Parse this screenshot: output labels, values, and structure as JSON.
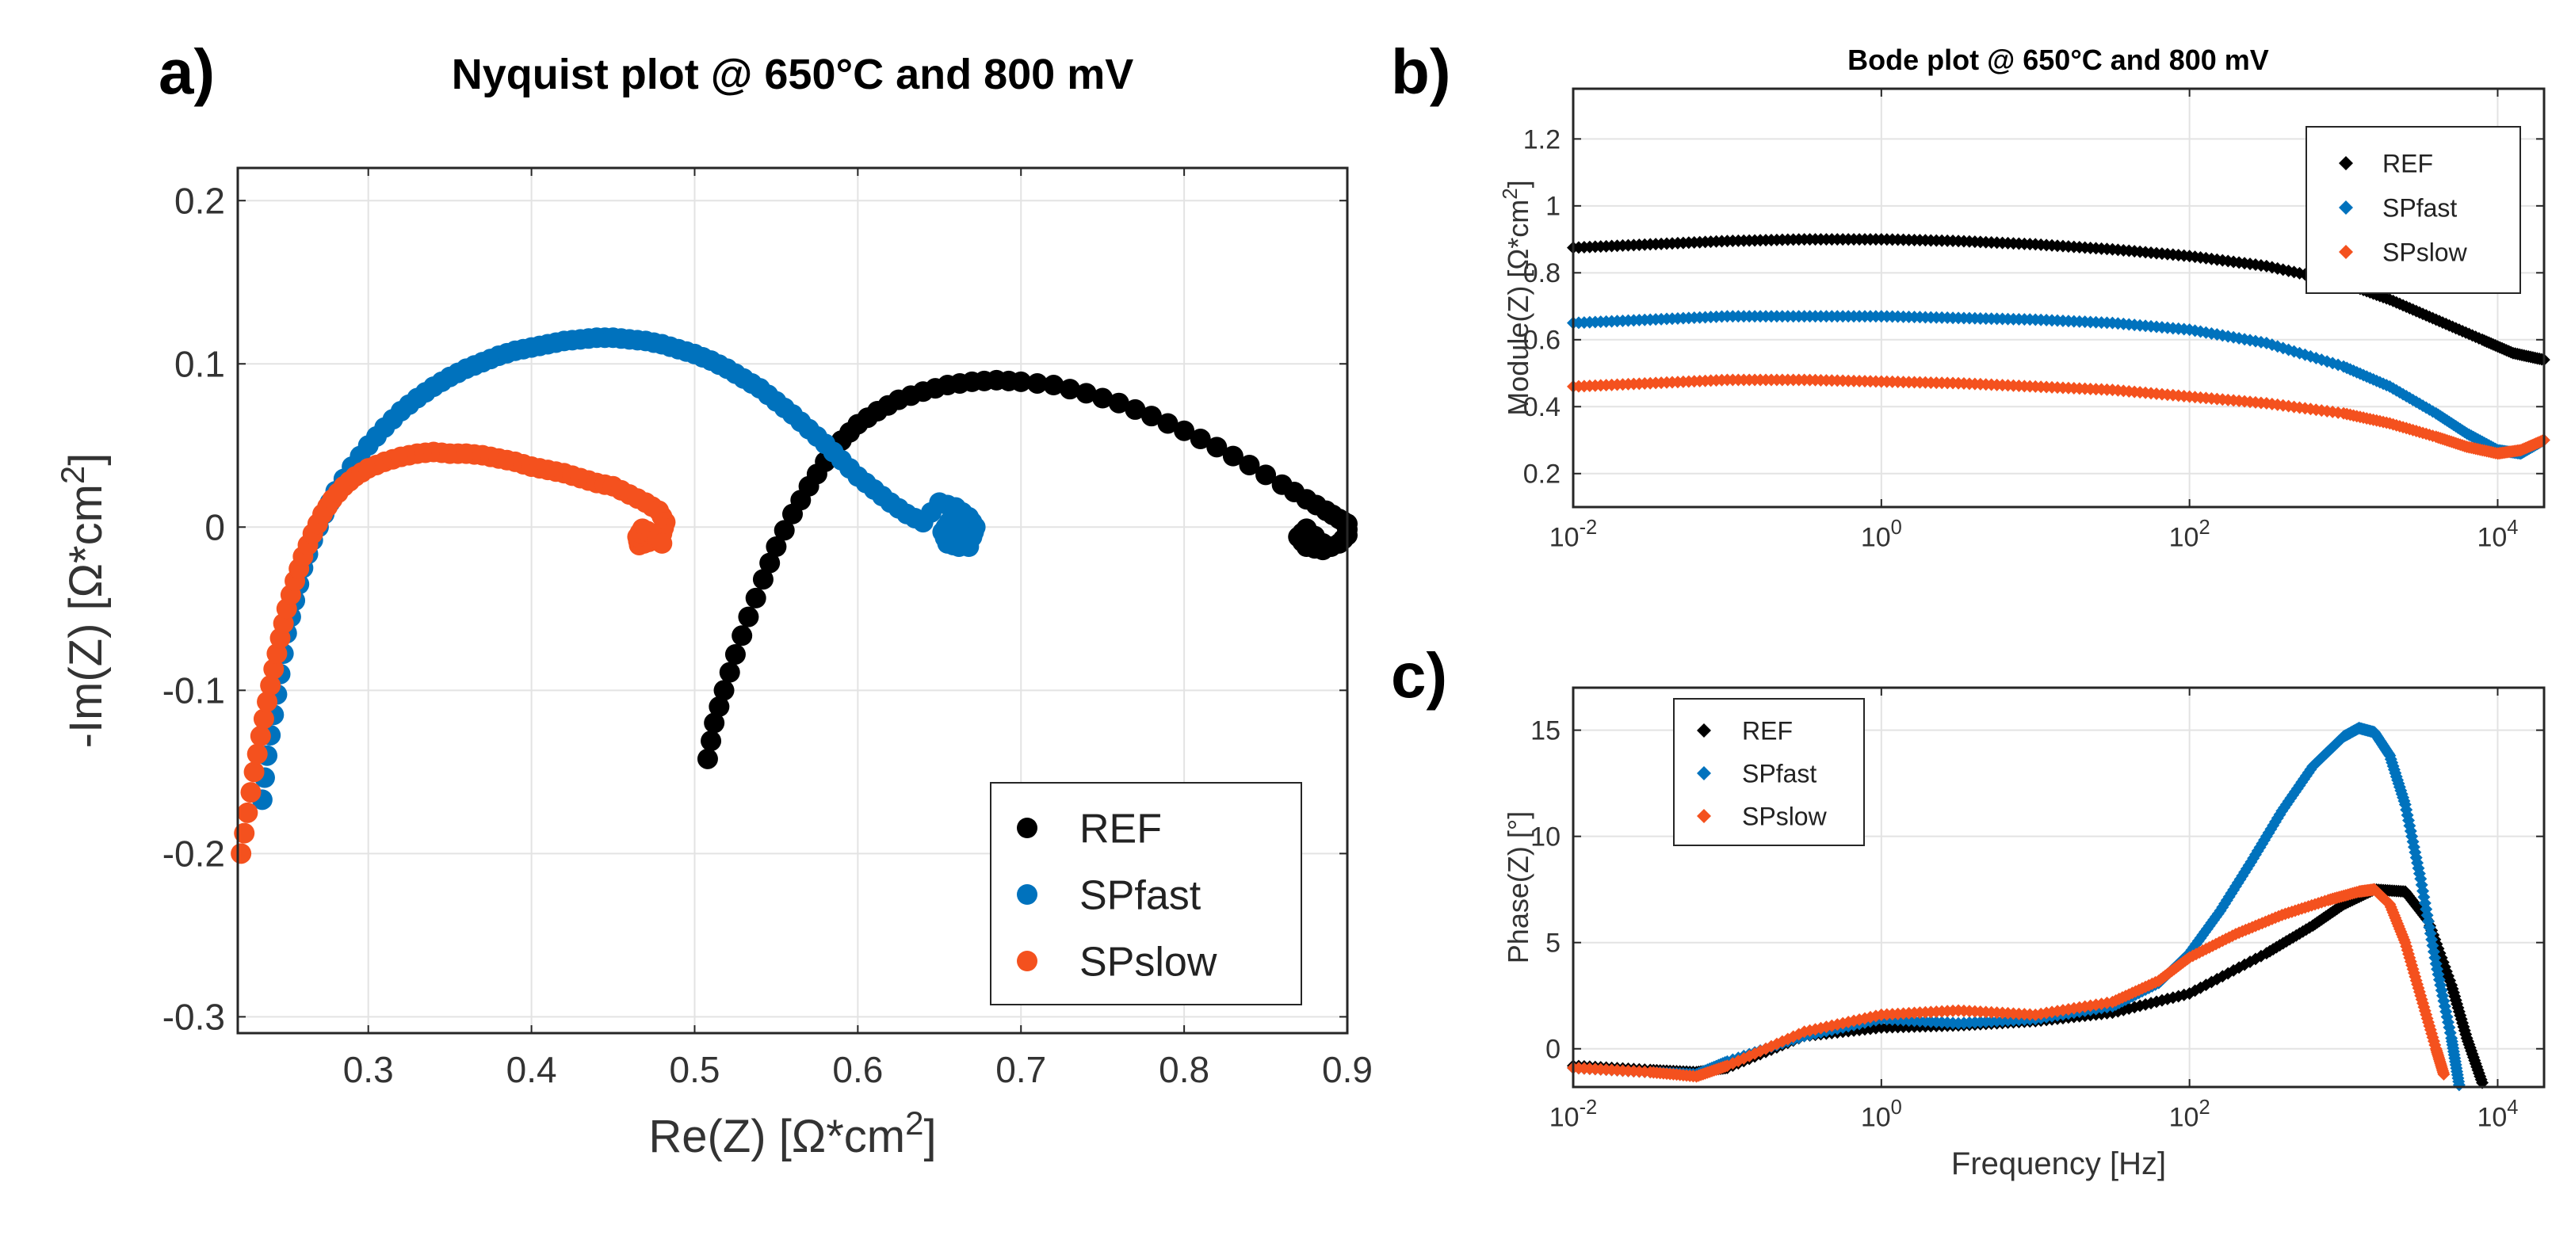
{
  "colors": {
    "REF": "#000000",
    "SPfast": "#0072BD",
    "SPslow": "#F4511E",
    "grid": "#e3e3e3",
    "axis": "#262626"
  },
  "chart_data": [
    {
      "id": "a",
      "panel_label": "a)",
      "type": "scatter",
      "title": "Nyquist plot @ 650°C and 800 mV",
      "xlabel": "Re(Z) [Ω*cm",
      "xlabel_sup": "2",
      "xlabel_end": "]",
      "ylabel": "-Im(Z) [Ω*cm",
      "ylabel_sup": "2",
      "ylabel_end": "]",
      "xlim": [
        0.22,
        0.9
      ],
      "ylim": [
        -0.31,
        0.22
      ],
      "xticks": [
        0.3,
        0.4,
        0.5,
        0.6,
        0.7,
        0.8,
        0.9
      ],
      "xtick_labels": [
        "0.3",
        "0.4",
        "0.5",
        "0.6",
        "0.7",
        "0.8",
        "0.9"
      ],
      "yticks": [
        -0.3,
        -0.2,
        -0.1,
        0,
        0.1,
        0.2
      ],
      "ytick_labels": [
        "-0.3",
        "-0.2",
        "-0.1",
        "0",
        "0.1",
        "0.2"
      ],
      "grid": true,
      "legend_position": "bottom-right",
      "series": [
        {
          "name": "REF",
          "color_key": "REF",
          "x": [
            0.508,
            0.512,
            0.518,
            0.525,
            0.533,
            0.542,
            0.55,
            0.56,
            0.57,
            0.58,
            0.59,
            0.6,
            0.612,
            0.625,
            0.64,
            0.655,
            0.67,
            0.685,
            0.7,
            0.72,
            0.74,
            0.76,
            0.78,
            0.8,
            0.82,
            0.84,
            0.86,
            0.875,
            0.887,
            0.895,
            0.9,
            0.9,
            0.895,
            0.885,
            0.875,
            0.87,
            0.875,
            0.885
          ],
          "y": [
            -0.142,
            -0.12,
            -0.1,
            -0.078,
            -0.055,
            -0.032,
            -0.012,
            0.008,
            0.025,
            0.04,
            0.053,
            0.063,
            0.071,
            0.078,
            0.083,
            0.087,
            0.089,
            0.09,
            0.089,
            0.087,
            0.082,
            0.076,
            0.068,
            0.059,
            0.049,
            0.038,
            0.026,
            0.017,
            0.01,
            0.005,
            0.002,
            -0.005,
            -0.01,
            -0.014,
            -0.012,
            -0.006,
            -0.001,
            -0.01
          ]
        },
        {
          "name": "SPfast",
          "color_key": "SPfast",
          "x": [
            0.235,
            0.238,
            0.242,
            0.246,
            0.25,
            0.255,
            0.26,
            0.266,
            0.273,
            0.28,
            0.29,
            0.3,
            0.31,
            0.32,
            0.33,
            0.34,
            0.35,
            0.36,
            0.37,
            0.38,
            0.39,
            0.4,
            0.41,
            0.42,
            0.43,
            0.44,
            0.45,
            0.46,
            0.47,
            0.48,
            0.49,
            0.5,
            0.51,
            0.52,
            0.53,
            0.54,
            0.55,
            0.56,
            0.57,
            0.58,
            0.59,
            0.6,
            0.61,
            0.62,
            0.63,
            0.64,
            0.65,
            0.66,
            0.668,
            0.672,
            0.67,
            0.662,
            0.655,
            0.652,
            0.656,
            0.662,
            0.668
          ],
          "y": [
            -0.167,
            -0.14,
            -0.115,
            -0.09,
            -0.065,
            -0.045,
            -0.025,
            -0.008,
            0.008,
            0.022,
            0.037,
            0.05,
            0.061,
            0.071,
            0.079,
            0.086,
            0.092,
            0.097,
            0.101,
            0.105,
            0.108,
            0.11,
            0.112,
            0.114,
            0.115,
            0.116,
            0.116,
            0.115,
            0.114,
            0.112,
            0.109,
            0.106,
            0.102,
            0.097,
            0.091,
            0.085,
            0.077,
            0.069,
            0.06,
            0.051,
            0.041,
            0.031,
            0.023,
            0.015,
            0.008,
            0.003,
            0.015,
            0.012,
            0.006,
            0.0,
            -0.006,
            -0.012,
            -0.01,
            -0.003,
            0.003,
            -0.002,
            -0.012
          ]
        },
        {
          "name": "SPslow",
          "color_key": "SPslow",
          "x": [
            0.222,
            0.226,
            0.23,
            0.234,
            0.238,
            0.242,
            0.246,
            0.25,
            0.255,
            0.26,
            0.266,
            0.272,
            0.278,
            0.285,
            0.292,
            0.3,
            0.31,
            0.32,
            0.33,
            0.34,
            0.35,
            0.36,
            0.37,
            0.38,
            0.39,
            0.4,
            0.41,
            0.42,
            0.43,
            0.44,
            0.45,
            0.46,
            0.47,
            0.478,
            0.482,
            0.48,
            0.472,
            0.466,
            0.465,
            0.468,
            0.474,
            0.48
          ],
          "y": [
            -0.2,
            -0.175,
            -0.15,
            -0.128,
            -0.107,
            -0.087,
            -0.068,
            -0.05,
            -0.033,
            -0.018,
            -0.004,
            0.008,
            0.017,
            0.025,
            0.031,
            0.036,
            0.04,
            0.043,
            0.045,
            0.046,
            0.045,
            0.045,
            0.044,
            0.042,
            0.04,
            0.037,
            0.035,
            0.033,
            0.03,
            0.027,
            0.025,
            0.02,
            0.015,
            0.01,
            0.003,
            -0.004,
            -0.009,
            -0.011,
            -0.006,
            -0.001,
            -0.004,
            -0.01
          ]
        }
      ]
    },
    {
      "id": "b",
      "panel_label": "b)",
      "type": "scatter",
      "title": "Bode plot @ 650°C and 800 mV",
      "xscale": "log",
      "xlabel": "",
      "ylabel": "Module(Z) [Ω*cm",
      "ylabel_sup": "2",
      "ylabel_end": "]",
      "xlim": [
        0.01,
        20000
      ],
      "ylim": [
        0.1,
        1.35
      ],
      "xticks": [
        0.01,
        1,
        100,
        10000
      ],
      "xtick_base": [
        "10",
        "10",
        "10",
        "10"
      ],
      "xtick_exp": [
        "-2",
        "0",
        "2",
        "4"
      ],
      "xtick_plain": [
        "",
        "1",
        "",
        ""
      ],
      "yticks": [
        0.2,
        0.4,
        0.6,
        0.8,
        1,
        1.2
      ],
      "ytick_labels": [
        "0.2",
        "0.4",
        "0.6",
        "0.8",
        "1",
        "1.2"
      ],
      "grid": true,
      "legend_position": "top-right",
      "series": [
        {
          "name": "REF",
          "color_key": "REF",
          "logx": [
            -2,
            -1.5,
            -1,
            -0.5,
            0,
            0.5,
            1,
            1.5,
            2,
            2.5,
            3,
            3.3,
            3.6,
            3.9,
            4.1,
            4.3
          ],
          "y": [
            0.875,
            0.885,
            0.895,
            0.9,
            0.9,
            0.895,
            0.885,
            0.87,
            0.85,
            0.82,
            0.77,
            0.72,
            0.66,
            0.6,
            0.56,
            0.54
          ]
        },
        {
          "name": "SPfast",
          "color_key": "SPfast",
          "logx": [
            -2,
            -1.5,
            -1,
            -0.5,
            0,
            0.5,
            1,
            1.5,
            2,
            2.5,
            3,
            3.3,
            3.6,
            3.8,
            4.0,
            4.15,
            4.3
          ],
          "y": [
            0.65,
            0.66,
            0.67,
            0.67,
            0.67,
            0.665,
            0.66,
            0.65,
            0.63,
            0.59,
            0.52,
            0.46,
            0.38,
            0.32,
            0.27,
            0.26,
            0.3
          ]
        },
        {
          "name": "SPslow",
          "color_key": "SPslow",
          "logx": [
            -2,
            -1.5,
            -1,
            -0.5,
            0,
            0.5,
            1,
            1.5,
            2,
            2.5,
            3,
            3.3,
            3.6,
            3.8,
            4.0,
            4.15,
            4.3
          ],
          "y": [
            0.46,
            0.47,
            0.48,
            0.48,
            0.475,
            0.47,
            0.46,
            0.45,
            0.43,
            0.41,
            0.38,
            0.35,
            0.31,
            0.28,
            0.26,
            0.27,
            0.3
          ]
        }
      ]
    },
    {
      "id": "c",
      "panel_label": "c)",
      "type": "scatter",
      "title": "",
      "xscale": "log",
      "xlabel": "Frequency [Hz]",
      "ylabel": "Phase(Z) [°]",
      "xlim": [
        0.01,
        20000
      ],
      "ylim": [
        -1.8,
        17
      ],
      "xticks": [
        0.01,
        1,
        100,
        10000
      ],
      "xtick_base": [
        "10",
        "10",
        "10",
        "10"
      ],
      "xtick_exp": [
        "-2",
        "0",
        "2",
        "4"
      ],
      "xtick_plain": [
        "",
        "1",
        "",
        ""
      ],
      "yticks": [
        0,
        5,
        10,
        15
      ],
      "ytick_labels": [
        "0",
        "5",
        "10",
        "15"
      ],
      "grid": true,
      "legend_position": "top-left",
      "series": [
        {
          "name": "REF",
          "color_key": "REF",
          "logx": [
            -2,
            -1.5,
            -1.2,
            -1,
            -0.5,
            0,
            0.5,
            1,
            1.5,
            2,
            2.5,
            2.8,
            3.0,
            3.2,
            3.4,
            3.55,
            3.7,
            3.8,
            3.9
          ],
          "y": [
            -0.8,
            -1.0,
            -1.1,
            -0.9,
            0.6,
            1.0,
            1.1,
            1.3,
            1.7,
            2.6,
            4.5,
            5.8,
            6.8,
            7.5,
            7.4,
            6.0,
            3.0,
            0.5,
            -1.6
          ]
        },
        {
          "name": "SPfast",
          "color_key": "SPfast",
          "logx": [
            -2,
            -1.5,
            -1.2,
            -1,
            -0.5,
            0,
            0.5,
            1,
            1.5,
            1.8,
            2.0,
            2.2,
            2.4,
            2.6,
            2.8,
            3.0,
            3.1,
            3.2,
            3.3,
            3.4,
            3.5,
            3.6,
            3.7,
            3.75
          ],
          "y": [
            -0.9,
            -1.1,
            -1.2,
            -0.6,
            0.6,
            1.4,
            1.2,
            1.4,
            2.0,
            3.1,
            4.5,
            6.5,
            8.8,
            11.2,
            13.3,
            14.7,
            15.1,
            14.9,
            13.8,
            11.5,
            8.0,
            4.0,
            0.5,
            -1.7
          ]
        },
        {
          "name": "SPslow",
          "color_key": "SPslow",
          "logx": [
            -2,
            -1.5,
            -1.2,
            -1,
            -0.5,
            0,
            0.5,
            1,
            1.5,
            1.8,
            2.0,
            2.3,
            2.6,
            2.9,
            3.1,
            3.2,
            3.3,
            3.4,
            3.5,
            3.6,
            3.65
          ],
          "y": [
            -0.9,
            -1.1,
            -1.3,
            -0.8,
            0.8,
            1.6,
            1.8,
            1.6,
            2.2,
            3.2,
            4.3,
            5.4,
            6.3,
            7.0,
            7.4,
            7.5,
            6.8,
            5.0,
            2.5,
            0.0,
            -1.2
          ]
        }
      ]
    }
  ]
}
